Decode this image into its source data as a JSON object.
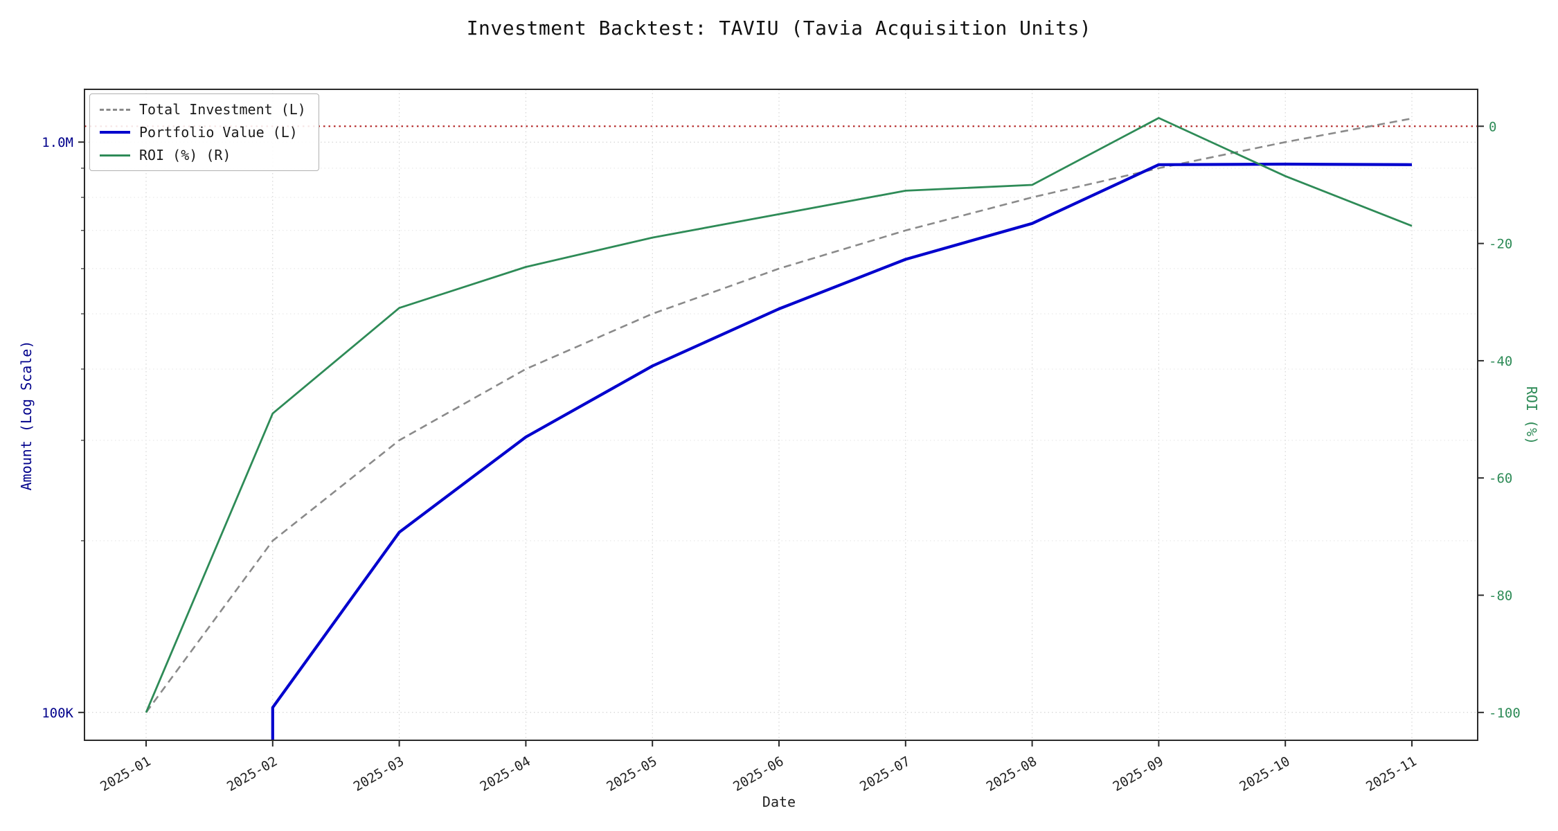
{
  "chart_data": {
    "type": "line",
    "title": "Investment Backtest: TAVIU (Tavia Acquisition Units)",
    "xlabel": "Date",
    "ylabel_left": "Amount (Log Scale)",
    "ylabel_right": "ROI (%)",
    "categories": [
      "2025-01",
      "2025-02",
      "2025-03",
      "2025-04",
      "2025-05",
      "2025-06",
      "2025-07",
      "2025-08",
      "2025-09",
      "2025-10",
      "2025-11"
    ],
    "series": [
      {
        "name": "Total Investment (L)",
        "axis": "left",
        "color": "#8a8a8a",
        "style": "dashed",
        "values": [
          100000,
          200000,
          300000,
          400000,
          500000,
          600000,
          700000,
          800000,
          900000,
          1000000,
          1100000
        ]
      },
      {
        "name": "Portfolio Value (L)",
        "axis": "left",
        "color": "#0000cd",
        "style": "solid-thick",
        "values": [
          0,
          102000,
          207000,
          304000,
          405000,
          510000,
          623000,
          720000,
          913000,
          915000,
          913000
        ]
      },
      {
        "name": "ROI (%) (R)",
        "axis": "right",
        "color": "#2e8b57",
        "style": "solid",
        "values": [
          -100,
          -49,
          -31,
          -24,
          -19,
          -15,
          -11,
          -10,
          1.4,
          -8.5,
          -17
        ]
      }
    ],
    "left_axis": {
      "scale": "log",
      "ticks": [
        {
          "value": 1000000,
          "label": "1.0M"
        },
        {
          "value": 100000,
          "label": "100K"
        }
      ],
      "range": [
        89700,
        1237000
      ],
      "text_color": "#00008b"
    },
    "right_axis": {
      "scale": "linear",
      "ticks": [
        0,
        -20,
        -40,
        -60,
        -80,
        -100
      ],
      "range": [
        -104.6,
        6.4
      ],
      "text_color": "#2e8b57"
    },
    "reference_line": {
      "axis": "right",
      "value": 0,
      "color": "#b22222",
      "style": "dotted"
    },
    "grid": true,
    "legend_position": "upper-left"
  }
}
